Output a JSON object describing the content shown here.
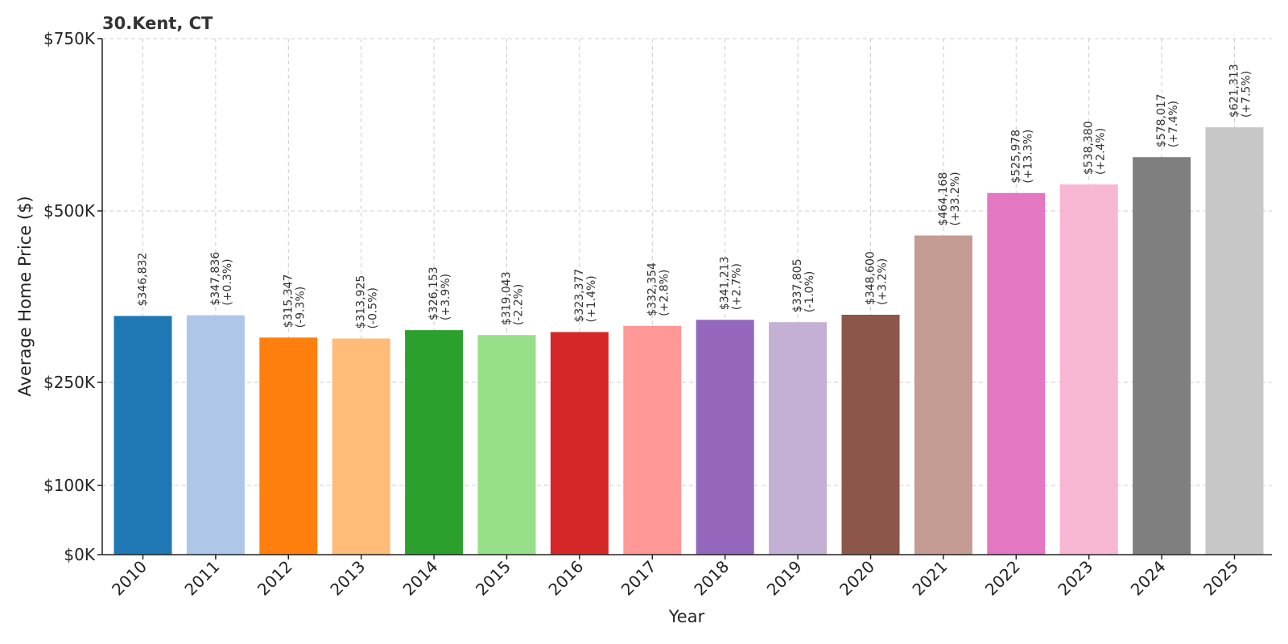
{
  "chart_data": {
    "type": "bar",
    "title": "30.Kent, CT",
    "xlabel": "Year",
    "ylabel": "Average Home Price ($)",
    "categories": [
      "2010",
      "2011",
      "2012",
      "2013",
      "2014",
      "2015",
      "2016",
      "2017",
      "2018",
      "2019",
      "2020",
      "2021",
      "2022",
      "2023",
      "2024",
      "2025"
    ],
    "values": [
      346832,
      347836,
      315347,
      313925,
      326153,
      319043,
      323377,
      332354,
      341213,
      337805,
      348600,
      464168,
      525978,
      538380,
      578017,
      621313
    ],
    "value_labels": [
      "$346,832",
      "$347,836",
      "$315,347",
      "$313,925",
      "$326,153",
      "$319,043",
      "$323,377",
      "$332,354",
      "$341,213",
      "$337,805",
      "$348,600",
      "$464,168",
      "$525,978",
      "$538,380",
      "$578,017",
      "$621,313"
    ],
    "change_labels": [
      "",
      "(+0.3%)",
      "(-9.3%)",
      "(-0.5%)",
      "(+3.9%)",
      "(-2.2%)",
      "(+1.4%)",
      "(+2.8%)",
      "(+2.7%)",
      "(-1.0%)",
      "(+3.2%)",
      "(+33.2%)",
      "(+13.3%)",
      "(+2.4%)",
      "(+7.4%)",
      "(+7.5%)"
    ],
    "colors": [
      "#1f77b4",
      "#aec7e8",
      "#ff7f0e",
      "#ffbb78",
      "#2ca02c",
      "#98df8a",
      "#d62728",
      "#ff9896",
      "#9467bd",
      "#c5b0d5",
      "#8c564b",
      "#c49c94",
      "#e377c2",
      "#f7b6d2",
      "#7f7f7f",
      "#c7c7c7"
    ],
    "ylim": [
      0,
      750000
    ],
    "yticks": [
      0,
      100000,
      250000,
      500000,
      750000
    ],
    "ytick_labels": [
      "$0K",
      "$100K",
      "$250K",
      "$500K",
      "$750K"
    ],
    "grid": true,
    "legend": "none"
  }
}
